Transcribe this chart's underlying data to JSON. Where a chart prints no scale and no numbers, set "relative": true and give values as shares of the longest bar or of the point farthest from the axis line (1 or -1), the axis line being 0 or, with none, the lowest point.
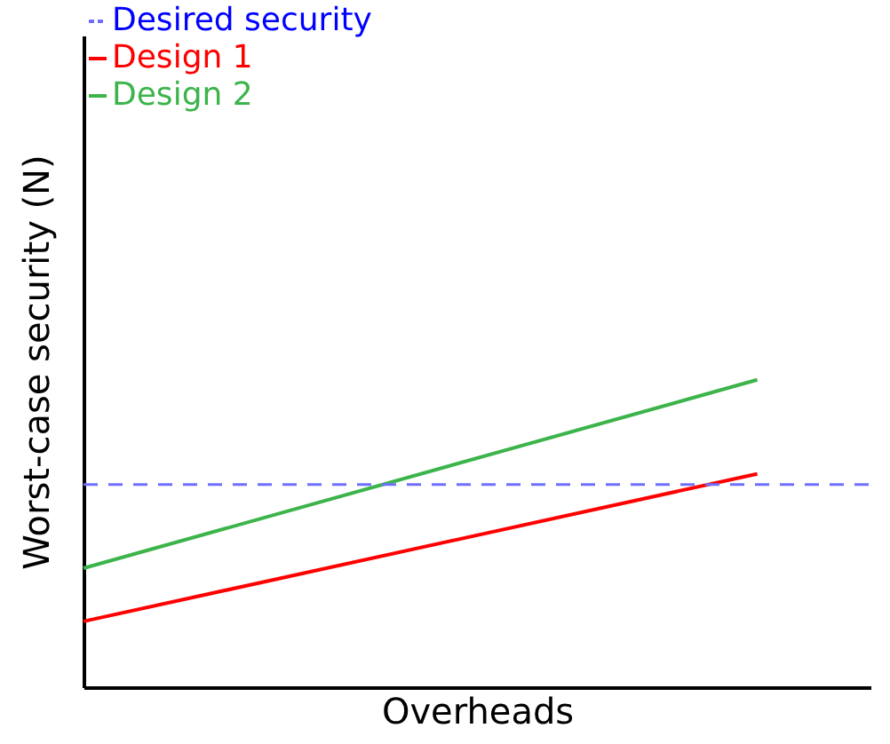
{
  "chart_data": {
    "type": "line",
    "relative": true,
    "xlabel": "Overheads",
    "ylabel": "Worst-case security (N)",
    "categories": [
      null,
      null
    ],
    "series": [
      {
        "name": "Design 1",
        "color": "#ff0000",
        "values": [
          0.214,
          0.694
        ]
      },
      {
        "name": "Design 2",
        "color": "#3cb44b",
        "values": [
          0.387,
          1
        ]
      }
    ],
    "ref_lines": [
      {
        "axis": "y",
        "value": 0.659,
        "label": "Desired security",
        "color": "#6f6fff",
        "line_style": "dashed"
      }
    ],
    "legend": "top left",
    "grid": false,
    "marker": "none",
    "line_style": "solid",
    "tick_labels": false
  }
}
